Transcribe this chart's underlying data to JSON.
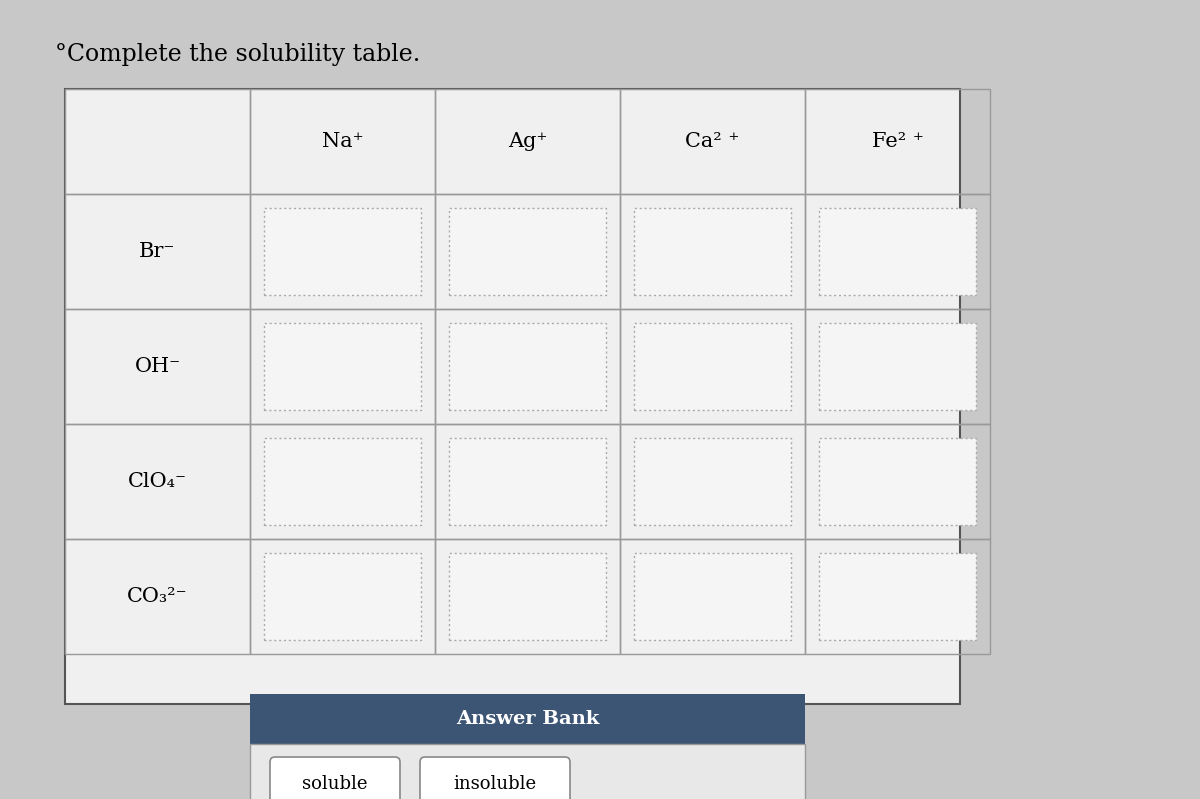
{
  "title": "Complete the solubility table.",
  "title_prefix": "°",
  "background_color": "#c8c8c8",
  "table_bg": "#f0f0f0",
  "cell_bg": "#f0f0f0",
  "header_row": [
    "",
    "Na⁺",
    "Ag⁺",
    "Ca² ⁺",
    "Fe² ⁺"
  ],
  "row_labels_display": [
    "Br⁻",
    "OH⁻",
    "ClO₄⁻",
    "CO₃²⁻"
  ],
  "n_data_rows": 4,
  "n_data_cols": 4,
  "answer_bank_bg": "#3d5574",
  "answer_bank_title": "Answer Bank",
  "answer1": "soluble",
  "answer2": "insoluble",
  "cell_border_color": "#888888",
  "table_border_color": "#555555",
  "title_fontsize": 17,
  "header_fontsize": 15,
  "row_label_fontsize": 15
}
